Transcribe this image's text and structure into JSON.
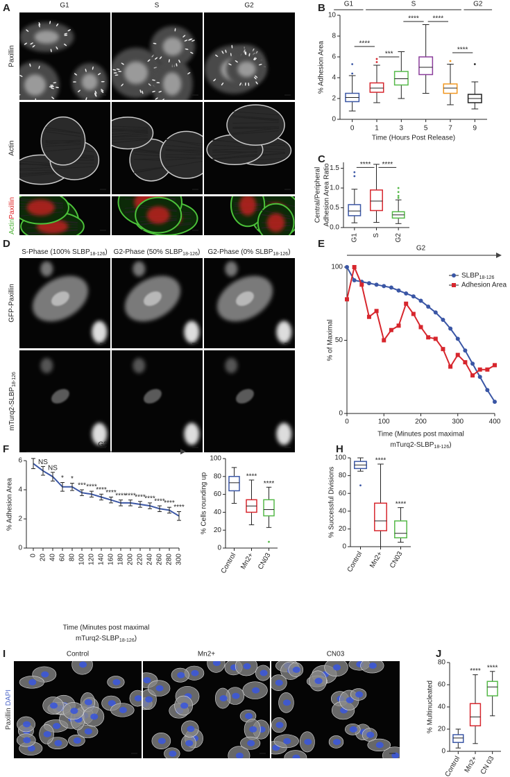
{
  "panel_labels": [
    "A",
    "B",
    "C",
    "D",
    "E",
    "F",
    "G",
    "H",
    "I",
    "J"
  ],
  "images": {
    "A": {
      "columns": [
        "G1",
        "S",
        "G2"
      ],
      "rows": [
        "Paxillin",
        "Actin",
        [
          "Actin",
          "Paxillin"
        ]
      ],
      "merge_colors": [
        "#48b030",
        "#e02020"
      ]
    },
    "D": {
      "columns": [
        [
          "S-Phase (100% SLBP",
          "18-126",
          ")"
        ],
        [
          "G2-Phase (50% SLBP",
          "18-126",
          ")"
        ],
        [
          "G2-Phase (0% SLBP",
          "18-126",
          ")"
        ]
      ],
      "rows": [
        "GFP-Paxillin",
        [
          "mTurq2-SLBP",
          "18-126"
        ]
      ]
    },
    "I": {
      "columns": [
        "Control",
        "Mn2+",
        "CN03"
      ],
      "row_label": [
        "Paxillin",
        "DAPI"
      ],
      "row_label_colors": [
        "#333333",
        "#4a64c8"
      ]
    }
  },
  "chart_data": [
    {
      "type": "box",
      "ylabel": "% Adhesion Area",
      "xlabel": "Time (Hours Post Release)",
      "categories": [
        "0",
        "1",
        "3",
        "5",
        "7",
        "9"
      ],
      "colors": [
        "#3a56a5",
        "#d7262d",
        "#55b948",
        "#8a3c9b",
        "#f0961e",
        "#222222"
      ],
      "ylim": [
        0,
        10
      ],
      "yticks": [
        0,
        2,
        4,
        6,
        8,
        10
      ],
      "boxes": [
        {
          "low": 0.8,
          "q1": 1.7,
          "median": 2.1,
          "q3": 2.5,
          "high": 4.2,
          "outliers": [
            4.4,
            5.3
          ]
        },
        {
          "low": 1.6,
          "q1": 2.6,
          "median": 3.0,
          "q3": 3.5,
          "high": 5.2,
          "outliers": [
            5.5,
            5.8
          ]
        },
        {
          "low": 2.0,
          "q1": 3.3,
          "median": 3.9,
          "q3": 4.6,
          "high": 6.5,
          "outliers": []
        },
        {
          "low": 2.5,
          "q1": 4.3,
          "median": 5.0,
          "q3": 6.0,
          "high": 9.1,
          "outliers": []
        },
        {
          "low": 1.4,
          "q1": 2.5,
          "median": 3.0,
          "q3": 3.4,
          "high": 5.3,
          "outliers": [
            5.6
          ]
        },
        {
          "low": 1.0,
          "q1": 1.6,
          "median": 2.0,
          "q3": 2.4,
          "high": 3.6,
          "outliers": [
            5.3
          ]
        }
      ],
      "phases": [
        "G1",
        "S",
        "G2"
      ],
      "significance": [
        "****",
        "***",
        "****",
        "****",
        "****"
      ]
    },
    {
      "type": "box",
      "ylabel": [
        "Central/Peripheral",
        "Adhesion Area Ratio"
      ],
      "categories": [
        "G1",
        "S",
        "G2"
      ],
      "colors": [
        "#3a56a5",
        "#d7262d",
        "#55b948"
      ],
      "ylim": [
        0,
        1.65
      ],
      "yticks": [
        {
          "value": 0,
          "label": "0.0"
        },
        0.5,
        {
          "value": 1,
          "label": "1.0"
        },
        1.5
      ],
      "boxes": [
        {
          "low": 0.12,
          "q1": 0.3,
          "median": 0.42,
          "q3": 0.58,
          "high": 0.97,
          "outliers": [
            1.3,
            1.4
          ]
        },
        {
          "low": 0.13,
          "q1": 0.43,
          "median": 0.67,
          "q3": 0.95,
          "high": 1.6,
          "outliers": []
        },
        {
          "low": 0.1,
          "q1": 0.24,
          "median": 0.32,
          "q3": 0.4,
          "high": 0.7,
          "outliers": [
            0.75,
            0.8,
            0.9,
            1.0
          ]
        }
      ],
      "significance": [
        "****",
        "****"
      ]
    },
    {
      "type": "line",
      "ylabel": "% of Maximal",
      "xlabel": [
        "Time (Minutes post maximal",
        [
          "mTurq2-SLBP",
          "18-126",
          ")"
        ]
      ],
      "phase": "G2",
      "legend": "upper right",
      "xlim": [
        0,
        400
      ],
      "xticks": [
        0,
        100,
        200,
        300,
        400
      ],
      "ylim": [
        0,
        100
      ],
      "yticks": [
        0,
        50,
        100
      ],
      "x": [
        0,
        20,
        40,
        60,
        80,
        100,
        120,
        140,
        160,
        180,
        200,
        220,
        240,
        260,
        280,
        300,
        320,
        340,
        360,
        380,
        400
      ],
      "series": [
        {
          "name": [
            "SLBP",
            "18-126"
          ],
          "color": "#3a56a5",
          "marker": "circle",
          "values": [
            100,
            91,
            90,
            89,
            88,
            87,
            86,
            84,
            82,
            80,
            77,
            73,
            69,
            64,
            58,
            51,
            43,
            34,
            25,
            16,
            8
          ]
        },
        {
          "name": "Adhesion Area",
          "color": "#d7262d",
          "marker": "square",
          "values": [
            78,
            100,
            88,
            66,
            70,
            50,
            57,
            60,
            75,
            68,
            59,
            52,
            51,
            44,
            32,
            40,
            35,
            26,
            30,
            30,
            33
          ]
        }
      ]
    },
    {
      "type": "line",
      "ylabel": "% Adhesion Area",
      "xlabel": [
        "Time (Minutes post maximal",
        [
          "mTurq2-SLBP",
          "18-126",
          ")"
        ]
      ],
      "phase": "G2",
      "color": "#3a56a5",
      "xlim": [
        0,
        300
      ],
      "xticks": [
        0,
        20,
        40,
        60,
        80,
        100,
        120,
        140,
        160,
        180,
        200,
        220,
        240,
        260,
        280,
        300
      ],
      "ylim": [
        0,
        6
      ],
      "yticks": [
        0,
        2,
        4,
        6
      ],
      "x": [
        0,
        20,
        40,
        60,
        80,
        100,
        120,
        140,
        160,
        180,
        200,
        220,
        240,
        260,
        280,
        300
      ],
      "values": [
        5.8,
        5.3,
        4.9,
        4.2,
        4.2,
        3.8,
        3.7,
        3.5,
        3.3,
        3.1,
        3.1,
        3.0,
        2.9,
        2.7,
        2.6,
        2.2
      ],
      "errors": [
        0.35,
        0.3,
        0.3,
        0.3,
        0.25,
        0.2,
        0.2,
        0.2,
        0.2,
        0.2,
        0.2,
        0.2,
        0.2,
        0.2,
        0.2,
        0.3
      ],
      "annotations": [
        null,
        "NS",
        "NS",
        "*",
        "*",
        "***",
        "****",
        "****",
        "****",
        "****",
        "****",
        "****",
        "****",
        "****",
        "****",
        "****"
      ]
    },
    {
      "type": "box",
      "ylabel": "% Cells rounding up",
      "categories": [
        "Control",
        "Mn2+",
        "CN03"
      ],
      "colors": [
        "#3a56a5",
        "#d7262d",
        "#55b948"
      ],
      "ylim": [
        0,
        100
      ],
      "yticks": [
        0,
        20,
        40,
        60,
        80,
        100
      ],
      "boxes": [
        {
          "low": 50,
          "q1": 64,
          "median": 73,
          "q3": 80,
          "high": 90,
          "outliers": []
        },
        {
          "low": 26,
          "q1": 40,
          "median": 47,
          "q3": 54,
          "high": 76,
          "outliers": []
        },
        {
          "low": 23,
          "q1": 36,
          "median": 43,
          "q3": 54,
          "high": 68,
          "outliers": [
            7
          ]
        }
      ],
      "annotations": [
        null,
        "****",
        "****"
      ]
    },
    {
      "type": "box",
      "ylabel": "% Successful Divisions",
      "categories": [
        "Control",
        "Mn2+",
        "CN03"
      ],
      "colors": [
        "#3a56a5",
        "#d7262d",
        "#55b948"
      ],
      "ylim": [
        0,
        100
      ],
      "yticks": [
        0,
        20,
        40,
        60,
        80,
        100
      ],
      "boxes": [
        {
          "low": 85,
          "q1": 88,
          "median": 92,
          "q3": 96,
          "high": 100,
          "outliers": [
            69
          ]
        },
        {
          "low": 0,
          "q1": 18,
          "median": 29,
          "q3": 49,
          "high": 93,
          "outliers": []
        },
        {
          "low": 5,
          "q1": 10,
          "median": 15,
          "q3": 29,
          "high": 44,
          "outliers": []
        }
      ],
      "annotations": [
        null,
        "****",
        "****"
      ]
    },
    {
      "type": "box",
      "ylabel": "% Multinucleated",
      "categories": [
        "Control",
        "Mn2+",
        "CN 03"
      ],
      "colors": [
        "#3a56a5",
        "#d7262d",
        "#55b948"
      ],
      "ylim": [
        0,
        80
      ],
      "yticks": [
        0,
        20,
        40,
        60,
        80
      ],
      "boxes": [
        {
          "low": 3,
          "q1": 8,
          "median": 12,
          "q3": 15,
          "high": 20,
          "outliers": []
        },
        {
          "low": 7,
          "q1": 23,
          "median": 31,
          "q3": 43,
          "high": 69,
          "outliers": []
        },
        {
          "low": 32,
          "q1": 50,
          "median": 58,
          "q3": 63,
          "high": 72,
          "outliers": []
        }
      ],
      "annotations": [
        null,
        "****",
        "****"
      ]
    }
  ]
}
